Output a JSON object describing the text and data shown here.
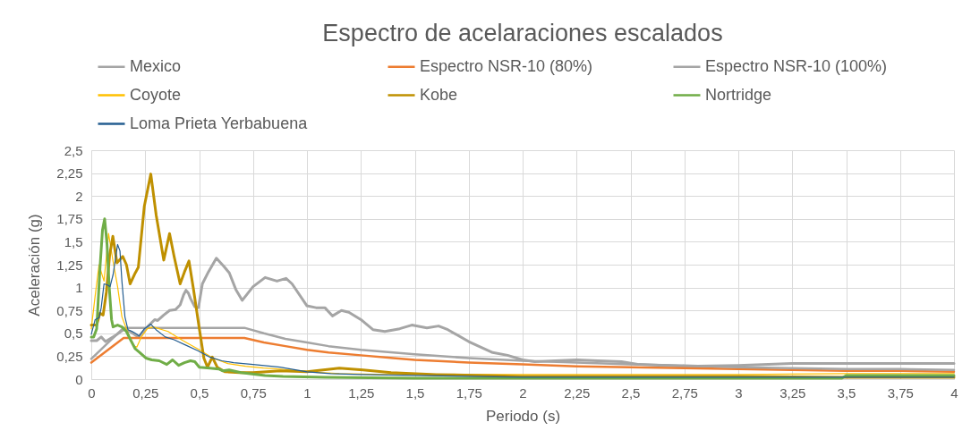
{
  "chart_data": {
    "type": "line",
    "title": "Espectro de acelaraciones escalados",
    "xlabel": "Periodo (s)",
    "ylabel": "Aceleración (g)",
    "xlim": [
      0,
      4
    ],
    "ylim": [
      0,
      2.5
    ],
    "xticks": [
      0,
      {
        "value": 0.25,
        "label": "0,25"
      },
      {
        "value": 0.5,
        "label": "0,5"
      },
      {
        "value": 0.75,
        "label": "0,75"
      },
      1,
      {
        "value": 1.25,
        "label": "1,25"
      },
      {
        "value": 1.5,
        "label": "1,5"
      },
      {
        "value": 1.75,
        "label": "1,75"
      },
      2,
      {
        "value": 2.25,
        "label": "2,25"
      },
      {
        "value": 2.5,
        "label": "2,5"
      },
      {
        "value": 2.75,
        "label": "2,75"
      },
      3,
      {
        "value": 3.25,
        "label": "3,25"
      },
      {
        "value": 3.5,
        "label": "3,5"
      },
      {
        "value": 3.75,
        "label": "3,75"
      },
      4
    ],
    "yticks": [
      0,
      {
        "value": 0.25,
        "label": "0,25"
      },
      {
        "value": 0.5,
        "label": "0,5"
      },
      {
        "value": 0.75,
        "label": "0,75"
      },
      1,
      {
        "value": 1.25,
        "label": "1,25"
      },
      {
        "value": 1.5,
        "label": "1,5"
      },
      {
        "value": 1.75,
        "label": "1,75"
      },
      2,
      {
        "value": 2.25,
        "label": "2,25"
      },
      {
        "value": 2.5,
        "label": "2,5"
      }
    ],
    "grid": true,
    "legend": "top",
    "series": [
      {
        "name": "Mexico",
        "color": "#a5a5a5",
        "x": [
          0,
          0.025,
          0.046,
          0.066,
          0.108,
          0.149,
          0.18,
          0.211,
          0.22,
          0.26,
          0.294,
          0.308,
          0.336,
          0.363,
          0.391,
          0.412,
          0.428,
          0.439,
          0.45,
          0.46,
          0.48,
          0.497,
          0.515,
          0.543,
          0.58,
          0.615,
          0.64,
          0.67,
          0.7,
          0.75,
          0.806,
          0.861,
          0.903,
          0.931,
          1.0,
          1.042,
          1.083,
          1.118,
          1.16,
          1.194,
          1.25,
          1.306,
          1.361,
          1.43,
          1.486,
          1.556,
          1.61,
          1.653,
          1.75,
          1.861,
          1.93,
          2.0,
          2.056,
          2.25,
          2.347,
          2.458,
          2.54,
          2.75,
          3.0,
          3.25,
          3.5,
          3.75,
          4.0
        ],
        "values": [
          0.42,
          0.42,
          0.46,
          0.41,
          0.47,
          0.54,
          0.52,
          0.47,
          0.46,
          0.57,
          0.65,
          0.64,
          0.7,
          0.75,
          0.76,
          0.81,
          0.92,
          0.97,
          0.94,
          0.88,
          0.79,
          0.78,
          1.04,
          1.17,
          1.32,
          1.23,
          1.16,
          0.98,
          0.86,
          1.01,
          1.11,
          1.07,
          1.1,
          1.04,
          0.8,
          0.78,
          0.78,
          0.69,
          0.75,
          0.73,
          0.65,
          0.54,
          0.52,
          0.55,
          0.59,
          0.56,
          0.58,
          0.54,
          0.41,
          0.29,
          0.26,
          0.21,
          0.19,
          0.21,
          0.2,
          0.19,
          0.16,
          0.14,
          0.15,
          0.17,
          0.17,
          0.17,
          0.17
        ]
      },
      {
        "name": "Espectro NSR-10 (80%)",
        "color": "#ed7d31",
        "x": [
          0,
          0.15,
          0.71,
          0.8,
          0.9,
          1.0,
          1.1,
          1.25,
          1.4,
          1.5,
          1.75,
          2.0,
          2.25,
          2.5,
          2.75,
          3.0,
          3.25,
          3.5,
          3.75,
          4.0
        ],
        "values": [
          0.18,
          0.45,
          0.45,
          0.4,
          0.36,
          0.32,
          0.29,
          0.26,
          0.23,
          0.21,
          0.18,
          0.16,
          0.14,
          0.13,
          0.12,
          0.11,
          0.1,
          0.09,
          0.09,
          0.08
        ]
      },
      {
        "name": "Espectro NSR-10 (100%)",
        "color": "#a5a5a5",
        "x": [
          0,
          0.15,
          0.71,
          0.8,
          0.9,
          1.0,
          1.1,
          1.25,
          1.4,
          1.5,
          1.75,
          2.0,
          2.25,
          2.5,
          2.75,
          3.0,
          3.25,
          3.5,
          3.75,
          4.0
        ],
        "values": [
          0.22,
          0.56,
          0.56,
          0.5,
          0.44,
          0.4,
          0.36,
          0.32,
          0.29,
          0.27,
          0.23,
          0.2,
          0.18,
          0.16,
          0.15,
          0.13,
          0.12,
          0.11,
          0.11,
          0.1
        ]
      },
      {
        "name": "Coyote",
        "color": "#ffc000",
        "x": [
          0,
          0.018,
          0.036,
          0.046,
          0.059,
          0.08,
          0.1,
          0.122,
          0.142,
          0.163,
          0.184,
          0.198,
          0.211,
          0.232,
          0.26,
          0.287,
          0.356,
          0.425,
          0.494,
          0.564,
          0.633,
          0.715,
          0.798,
          0.875,
          1.0,
          1.15,
          1.36,
          1.61,
          2.0,
          2.5,
          3.0,
          3.5,
          4.0
        ],
        "values": [
          0.55,
          0.91,
          1.25,
          1.17,
          1.07,
          1.59,
          1.3,
          1.01,
          0.68,
          0.55,
          0.42,
          0.36,
          0.35,
          0.46,
          0.55,
          0.57,
          0.52,
          0.42,
          0.33,
          0.23,
          0.17,
          0.14,
          0.12,
          0.11,
          0.08,
          0.06,
          0.05,
          0.05,
          0.05,
          0.05,
          0.05,
          0.06,
          0.06
        ]
      },
      {
        "name": "Kobe",
        "color": "#bf9000",
        "x": [
          0,
          0.025,
          0.04,
          0.055,
          0.07,
          0.085,
          0.1,
          0.119,
          0.146,
          0.163,
          0.18,
          0.204,
          0.218,
          0.246,
          0.276,
          0.301,
          0.336,
          0.363,
          0.384,
          0.412,
          0.432,
          0.453,
          0.474,
          0.501,
          0.522,
          0.539,
          0.561,
          0.584,
          0.619,
          0.688,
          0.75,
          0.875,
          1.0,
          1.15,
          1.26,
          1.39,
          1.6,
          2.0,
          2.5,
          3.0,
          3.5,
          4.0
        ],
        "values": [
          0.59,
          0.59,
          0.72,
          0.7,
          0.95,
          1.35,
          1.56,
          1.27,
          1.34,
          1.25,
          1.04,
          1.16,
          1.22,
          1.89,
          2.24,
          1.79,
          1.3,
          1.59,
          1.34,
          1.04,
          1.17,
          1.29,
          0.98,
          0.55,
          0.23,
          0.13,
          0.24,
          0.13,
          0.08,
          0.07,
          0.07,
          0.09,
          0.08,
          0.12,
          0.1,
          0.07,
          0.05,
          0.03,
          0.03,
          0.03,
          0.02,
          0.02
        ]
      },
      {
        "name": "Nortridge",
        "color": "#70ad47",
        "x": [
          0,
          0.011,
          0.025,
          0.041,
          0.052,
          0.062,
          0.073,
          0.083,
          0.094,
          0.101,
          0.122,
          0.142,
          0.163,
          0.184,
          0.204,
          0.225,
          0.253,
          0.28,
          0.315,
          0.35,
          0.377,
          0.405,
          0.432,
          0.46,
          0.48,
          0.501,
          0.55,
          0.591,
          0.61,
          0.639,
          0.694,
          0.806,
          0.889,
          1.083,
          1.5,
          2.0,
          2.5,
          3.0,
          3.48,
          3.5,
          3.75,
          4.0
        ],
        "values": [
          0.46,
          0.46,
          0.55,
          1.24,
          1.63,
          1.75,
          1.47,
          1.01,
          0.65,
          0.57,
          0.59,
          0.57,
          0.52,
          0.42,
          0.33,
          0.29,
          0.23,
          0.21,
          0.2,
          0.16,
          0.21,
          0.15,
          0.18,
          0.2,
          0.19,
          0.13,
          0.12,
          0.11,
          0.09,
          0.1,
          0.07,
          0.04,
          0.03,
          0.02,
          0.01,
          0.01,
          0.01,
          0.01,
          0.01,
          0.04,
          0.04,
          0.04
        ]
      },
      {
        "name": "Loma Prieta Yerbabuena",
        "color": "#255e91",
        "x": [
          0,
          0.018,
          0.036,
          0.046,
          0.059,
          0.073,
          0.087,
          0.101,
          0.122,
          0.133,
          0.142,
          0.156,
          0.17,
          0.19,
          0.211,
          0.221,
          0.246,
          0.276,
          0.3,
          0.343,
          0.384,
          0.439,
          0.494,
          0.55,
          0.605,
          0.66,
          0.75,
          0.875,
          1.0,
          1.11,
          1.25,
          1.5,
          2.0,
          2.5,
          3.0,
          3.5,
          4.0
        ],
        "values": [
          0.49,
          0.65,
          0.67,
          0.78,
          1.04,
          1.03,
          1.01,
          1.14,
          1.47,
          1.4,
          1.07,
          0.68,
          0.54,
          0.52,
          0.49,
          0.47,
          0.55,
          0.6,
          0.54,
          0.46,
          0.43,
          0.37,
          0.31,
          0.24,
          0.2,
          0.18,
          0.16,
          0.13,
          0.08,
          0.06,
          0.05,
          0.04,
          0.02,
          0.02,
          0.02,
          0.02,
          0.02
        ]
      }
    ]
  }
}
